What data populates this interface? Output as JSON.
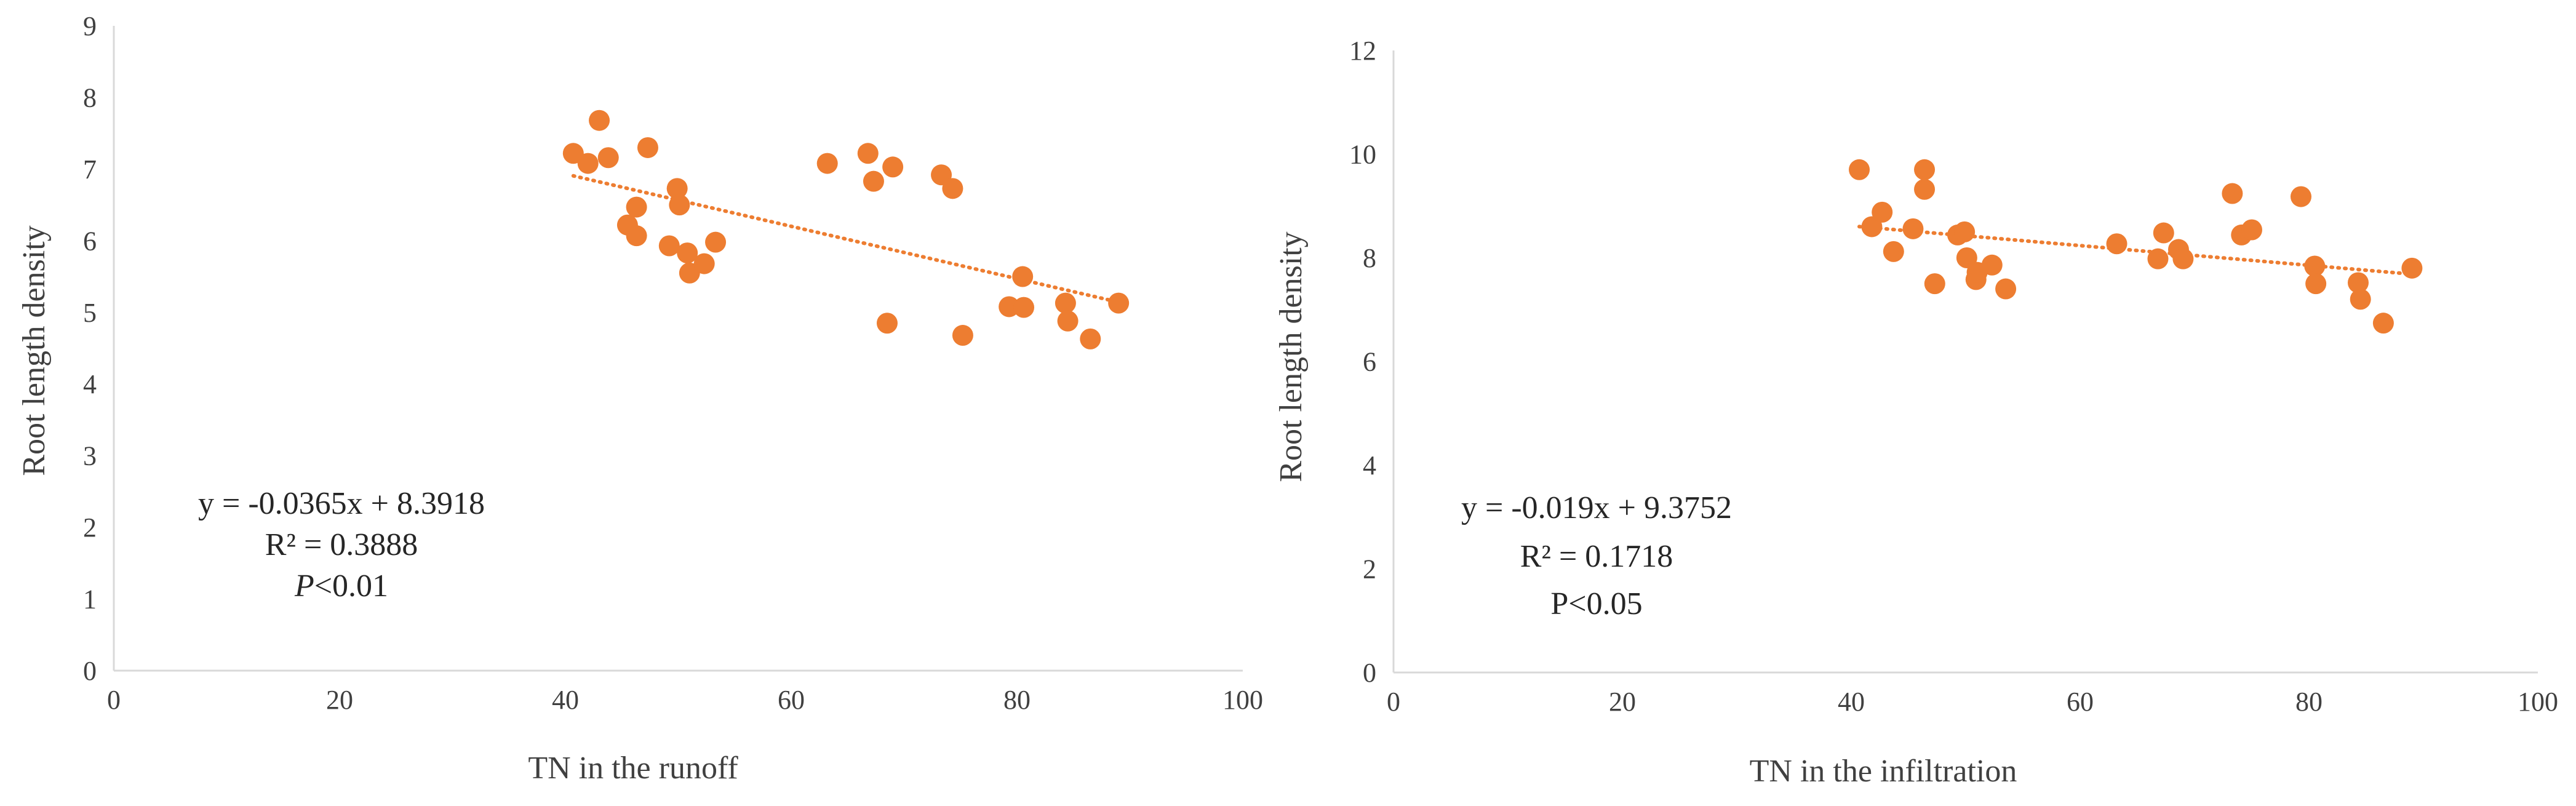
{
  "colors": {
    "point": "#ED7D31",
    "trend": "#ED7D31",
    "axis": "#D9D9D9",
    "text": "#404040"
  },
  "chart_data": [
    {
      "type": "scatter",
      "xlabel": "TN in the runoff",
      "ylabel": "Root length density",
      "xlim": [
        0,
        100
      ],
      "ylim": [
        0,
        9
      ],
      "xticks": [
        "0",
        "20",
        "40",
        "60",
        "80",
        "100"
      ],
      "yticks": [
        "0",
        "1",
        "2",
        "3",
        "4",
        "5",
        "6",
        "7",
        "8",
        "9"
      ],
      "grid": false,
      "trendline": {
        "slope": -0.0365,
        "intercept": 8.3918,
        "x_range": [
          40.7,
          89
        ],
        "style": "dotted"
      },
      "annotation": {
        "equation": "y = -0.0365x + 8.3918",
        "r2": "R² = 0.3888",
        "p_italic": "P",
        "p_rest": "<0.01"
      },
      "points": [
        {
          "x": 40.7,
          "y": 7.22
        },
        {
          "x": 42.0,
          "y": 7.08
        },
        {
          "x": 43.0,
          "y": 7.68
        },
        {
          "x": 43.8,
          "y": 7.16
        },
        {
          "x": 45.5,
          "y": 6.22
        },
        {
          "x": 46.3,
          "y": 6.47
        },
        {
          "x": 46.3,
          "y": 6.07
        },
        {
          "x": 47.3,
          "y": 7.3
        },
        {
          "x": 49.2,
          "y": 5.93
        },
        {
          "x": 49.9,
          "y": 6.73
        },
        {
          "x": 50.1,
          "y": 6.5
        },
        {
          "x": 50.8,
          "y": 5.83
        },
        {
          "x": 51.0,
          "y": 5.55
        },
        {
          "x": 52.3,
          "y": 5.68
        },
        {
          "x": 53.3,
          "y": 5.98
        },
        {
          "x": 63.2,
          "y": 7.08
        },
        {
          "x": 66.8,
          "y": 7.22
        },
        {
          "x": 67.3,
          "y": 6.83
        },
        {
          "x": 68.5,
          "y": 4.85
        },
        {
          "x": 69.0,
          "y": 7.03
        },
        {
          "x": 73.3,
          "y": 6.92
        },
        {
          "x": 74.3,
          "y": 6.73
        },
        {
          "x": 75.2,
          "y": 4.68
        },
        {
          "x": 79.3,
          "y": 5.08
        },
        {
          "x": 80.5,
          "y": 5.5
        },
        {
          "x": 80.6,
          "y": 5.07
        },
        {
          "x": 84.3,
          "y": 5.13
        },
        {
          "x": 84.5,
          "y": 4.88
        },
        {
          "x": 86.5,
          "y": 4.63
        },
        {
          "x": 89.0,
          "y": 5.13
        }
      ]
    },
    {
      "type": "scatter",
      "xlabel": "TN in the infiltration",
      "ylabel": "Root length density",
      "xlim": [
        0,
        100
      ],
      "ylim": [
        0,
        12
      ],
      "xticks": [
        "0",
        "20",
        "40",
        "60",
        "80",
        "100"
      ],
      "yticks": [
        "0",
        "2",
        "4",
        "6",
        "8",
        "10",
        "12"
      ],
      "grid": false,
      "trendline": {
        "slope": -0.019,
        "intercept": 9.3752,
        "x_range": [
          40.7,
          89
        ],
        "style": "dotted"
      },
      "annotation": {
        "equation": "y = -0.019x + 9.3752",
        "r2": "R² = 0.1718",
        "p_italic": "",
        "p_rest": "P<0.05"
      },
      "points": [
        {
          "x": 40.7,
          "y": 9.7
        },
        {
          "x": 41.8,
          "y": 8.6
        },
        {
          "x": 42.7,
          "y": 8.88
        },
        {
          "x": 43.7,
          "y": 8.12
        },
        {
          "x": 45.4,
          "y": 8.56
        },
        {
          "x": 46.4,
          "y": 9.7
        },
        {
          "x": 46.4,
          "y": 9.32
        },
        {
          "x": 47.3,
          "y": 7.5
        },
        {
          "x": 49.3,
          "y": 8.44
        },
        {
          "x": 49.9,
          "y": 8.5
        },
        {
          "x": 50.1,
          "y": 8.0
        },
        {
          "x": 50.9,
          "y": 7.58
        },
        {
          "x": 51.0,
          "y": 7.72
        },
        {
          "x": 52.3,
          "y": 7.86
        },
        {
          "x": 53.5,
          "y": 7.4
        },
        {
          "x": 63.2,
          "y": 8.27
        },
        {
          "x": 66.8,
          "y": 7.98
        },
        {
          "x": 67.3,
          "y": 8.48
        },
        {
          "x": 68.6,
          "y": 8.16
        },
        {
          "x": 69.0,
          "y": 7.98
        },
        {
          "x": 73.3,
          "y": 9.24
        },
        {
          "x": 74.1,
          "y": 8.44
        },
        {
          "x": 75.0,
          "y": 8.54
        },
        {
          "x": 79.3,
          "y": 9.18
        },
        {
          "x": 80.5,
          "y": 7.84
        },
        {
          "x": 80.6,
          "y": 7.5
        },
        {
          "x": 84.3,
          "y": 7.52
        },
        {
          "x": 84.5,
          "y": 7.2
        },
        {
          "x": 86.5,
          "y": 6.74
        },
        {
          "x": 89.0,
          "y": 7.8
        }
      ]
    }
  ]
}
